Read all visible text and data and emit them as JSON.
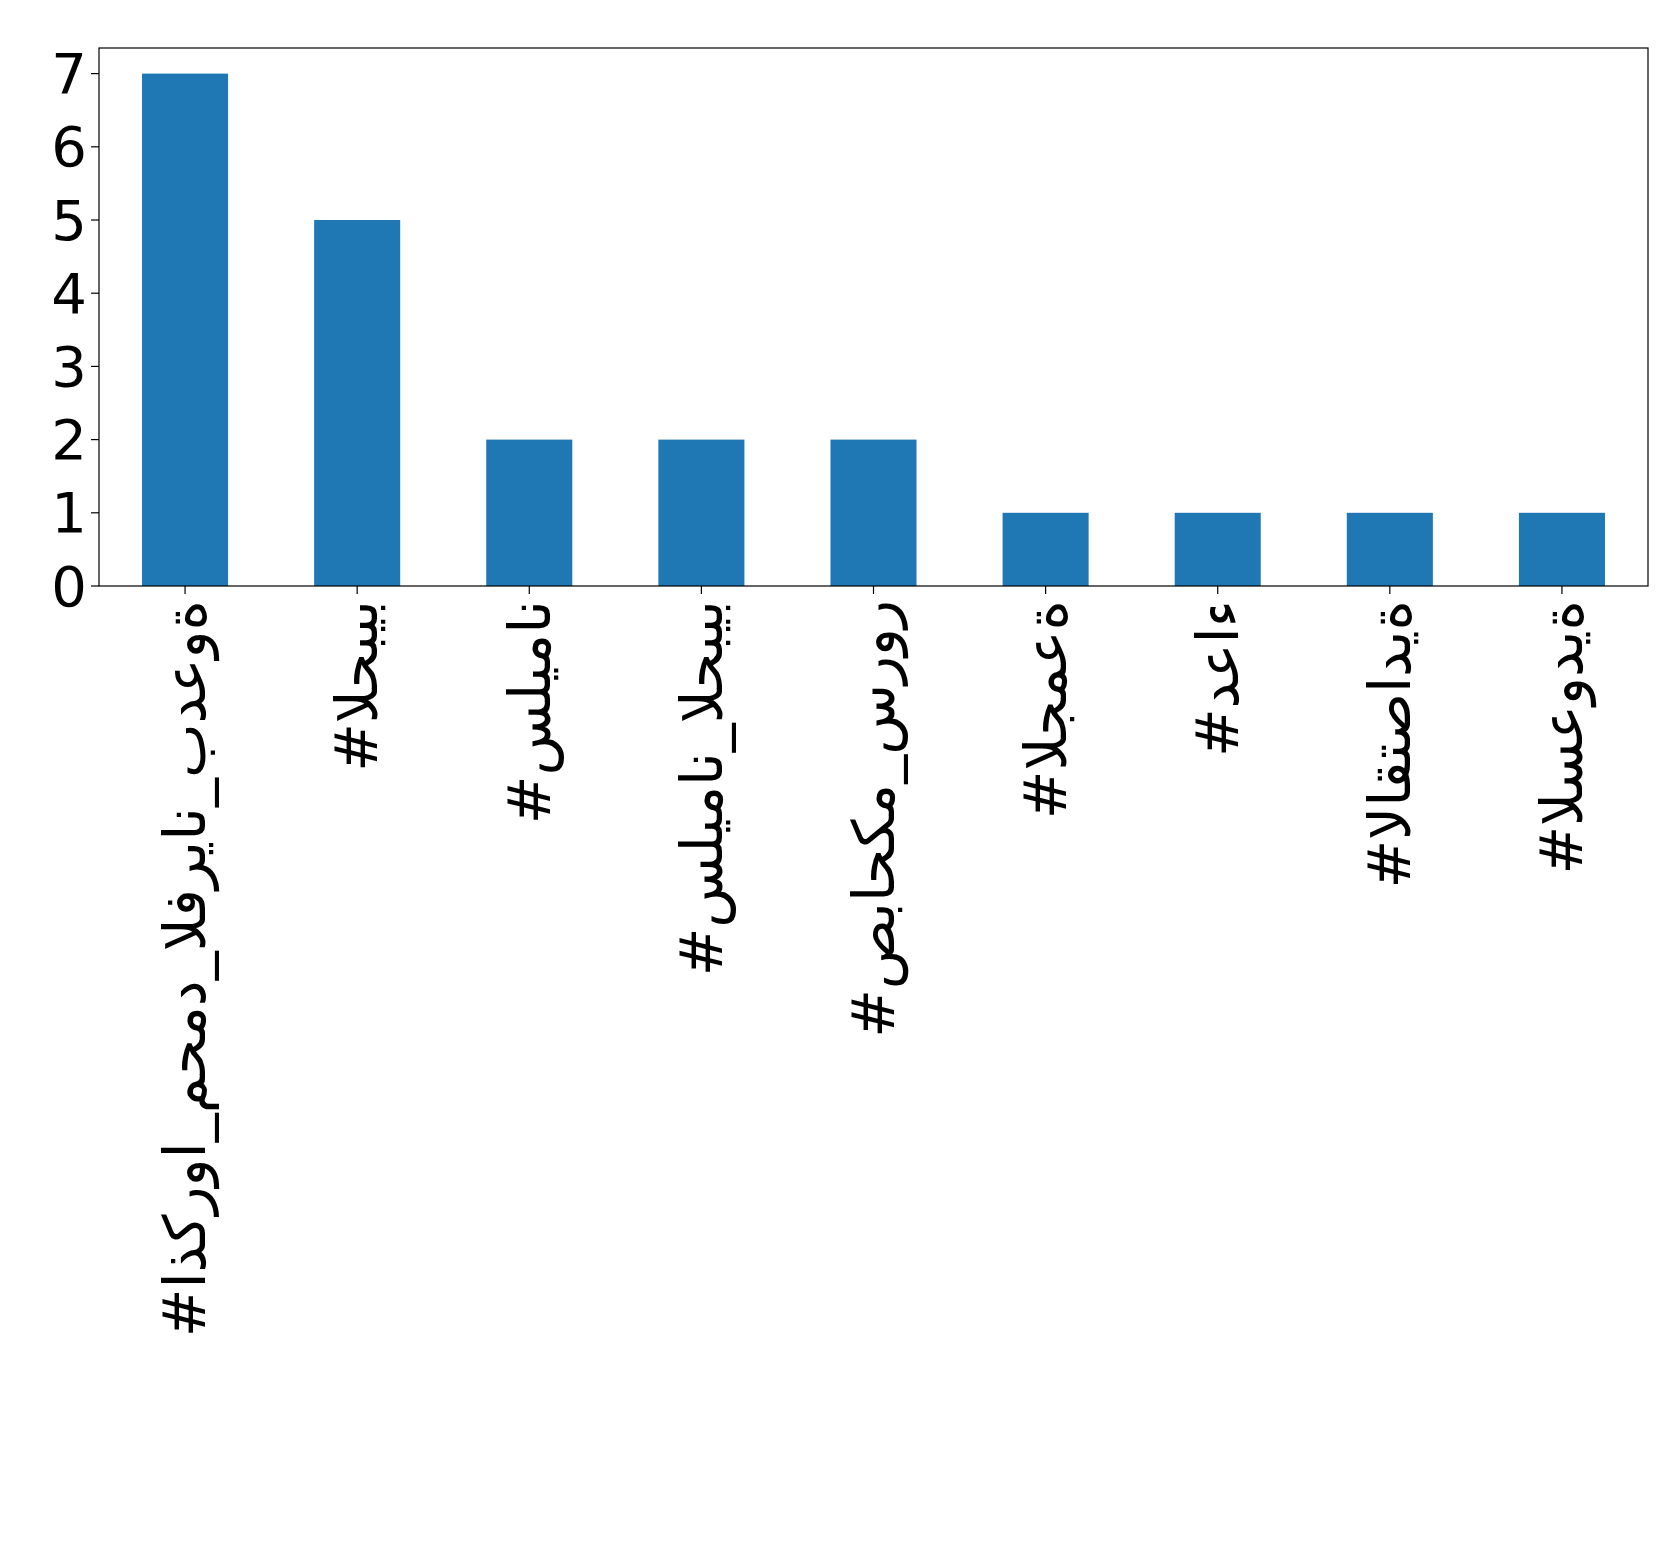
{
  "chart_data": {
    "type": "bar",
    "categories": [
      "#اذكروا_محمد_الفريان_بدعوة",
      "#الحبيب",
      "#سليمان",
      "#سليمان_الحبيب",
      "#صباحكم_سرور",
      "#الجمعة",
      "#دعاء",
      "#الاقتصادية",
      "#السعودية"
    ],
    "values": [
      7,
      5,
      2,
      2,
      2,
      1,
      1,
      1,
      1
    ],
    "color": "#1f77b4",
    "ylim": [
      0,
      7.35
    ],
    "yticks": [
      0,
      1,
      2,
      3,
      4,
      5,
      6,
      7
    ],
    "grid": false
  }
}
